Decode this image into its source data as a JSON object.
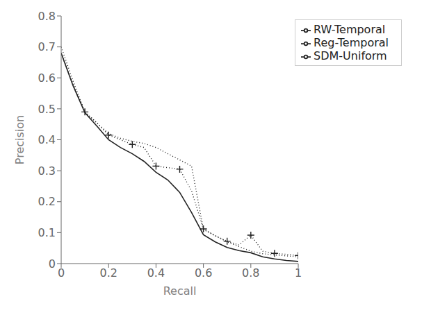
{
  "chart_data": {
    "type": "line",
    "xlabel": "Recall",
    "ylabel": "Precision",
    "x": [
      0.0,
      0.05,
      0.1,
      0.15,
      0.2,
      0.25,
      0.3,
      0.35,
      0.4,
      0.45,
      0.5,
      0.55,
      0.6,
      0.65,
      0.7,
      0.75,
      0.8,
      0.85,
      0.9,
      0.95,
      1.0
    ],
    "xlim": [
      0,
      1
    ],
    "xticks": [
      0,
      0.2,
      0.4,
      0.6,
      0.8,
      1
    ],
    "ylim": [
      0,
      0.8
    ],
    "yticks": [
      0,
      0.1,
      0.2,
      0.3,
      0.4,
      0.5,
      0.6,
      0.7,
      0.8
    ],
    "grid": false,
    "legend": "upper right",
    "series": [
      {
        "name": "RW-Temporal",
        "color": "#222222",
        "line_style": "dotted",
        "values": [
          0.7,
          0.59,
          0.49,
          0.455,
          0.42,
          0.405,
          0.395,
          0.388,
          0.375,
          0.355,
          0.335,
          0.315,
          0.11,
          0.09,
          0.07,
          0.055,
          0.04,
          0.032,
          0.028,
          0.025,
          0.022
        ]
      },
      {
        "name": "Reg-Temporal",
        "color": "#222222",
        "line_style": "dotted",
        "values": [
          0.68,
          0.58,
          0.49,
          0.455,
          0.415,
          0.4,
          0.385,
          0.375,
          0.315,
          0.31,
          0.305,
          0.235,
          0.112,
          0.09,
          0.072,
          0.06,
          0.092,
          0.04,
          0.033,
          0.03,
          0.026
        ]
      },
      {
        "type": "scatter",
        "marker": "plus",
        "color": "#222222",
        "x": [
          0.1,
          0.2,
          0.3,
          0.4,
          0.5,
          0.6,
          0.7,
          0.8,
          0.9,
          1.0
        ],
        "values": [
          0.49,
          0.415,
          0.385,
          0.315,
          0.305,
          0.112,
          0.072,
          0.092,
          0.033,
          0.026
        ]
      },
      {
        "name": "SDM-Uniform",
        "color": "#222222",
        "line_style": "solid",
        "values": [
          0.68,
          0.575,
          0.488,
          0.445,
          0.4,
          0.375,
          0.355,
          0.33,
          0.295,
          0.27,
          0.23,
          0.165,
          0.093,
          0.07,
          0.052,
          0.042,
          0.035,
          0.022,
          0.015,
          0.01,
          0.007
        ]
      }
    ]
  }
}
